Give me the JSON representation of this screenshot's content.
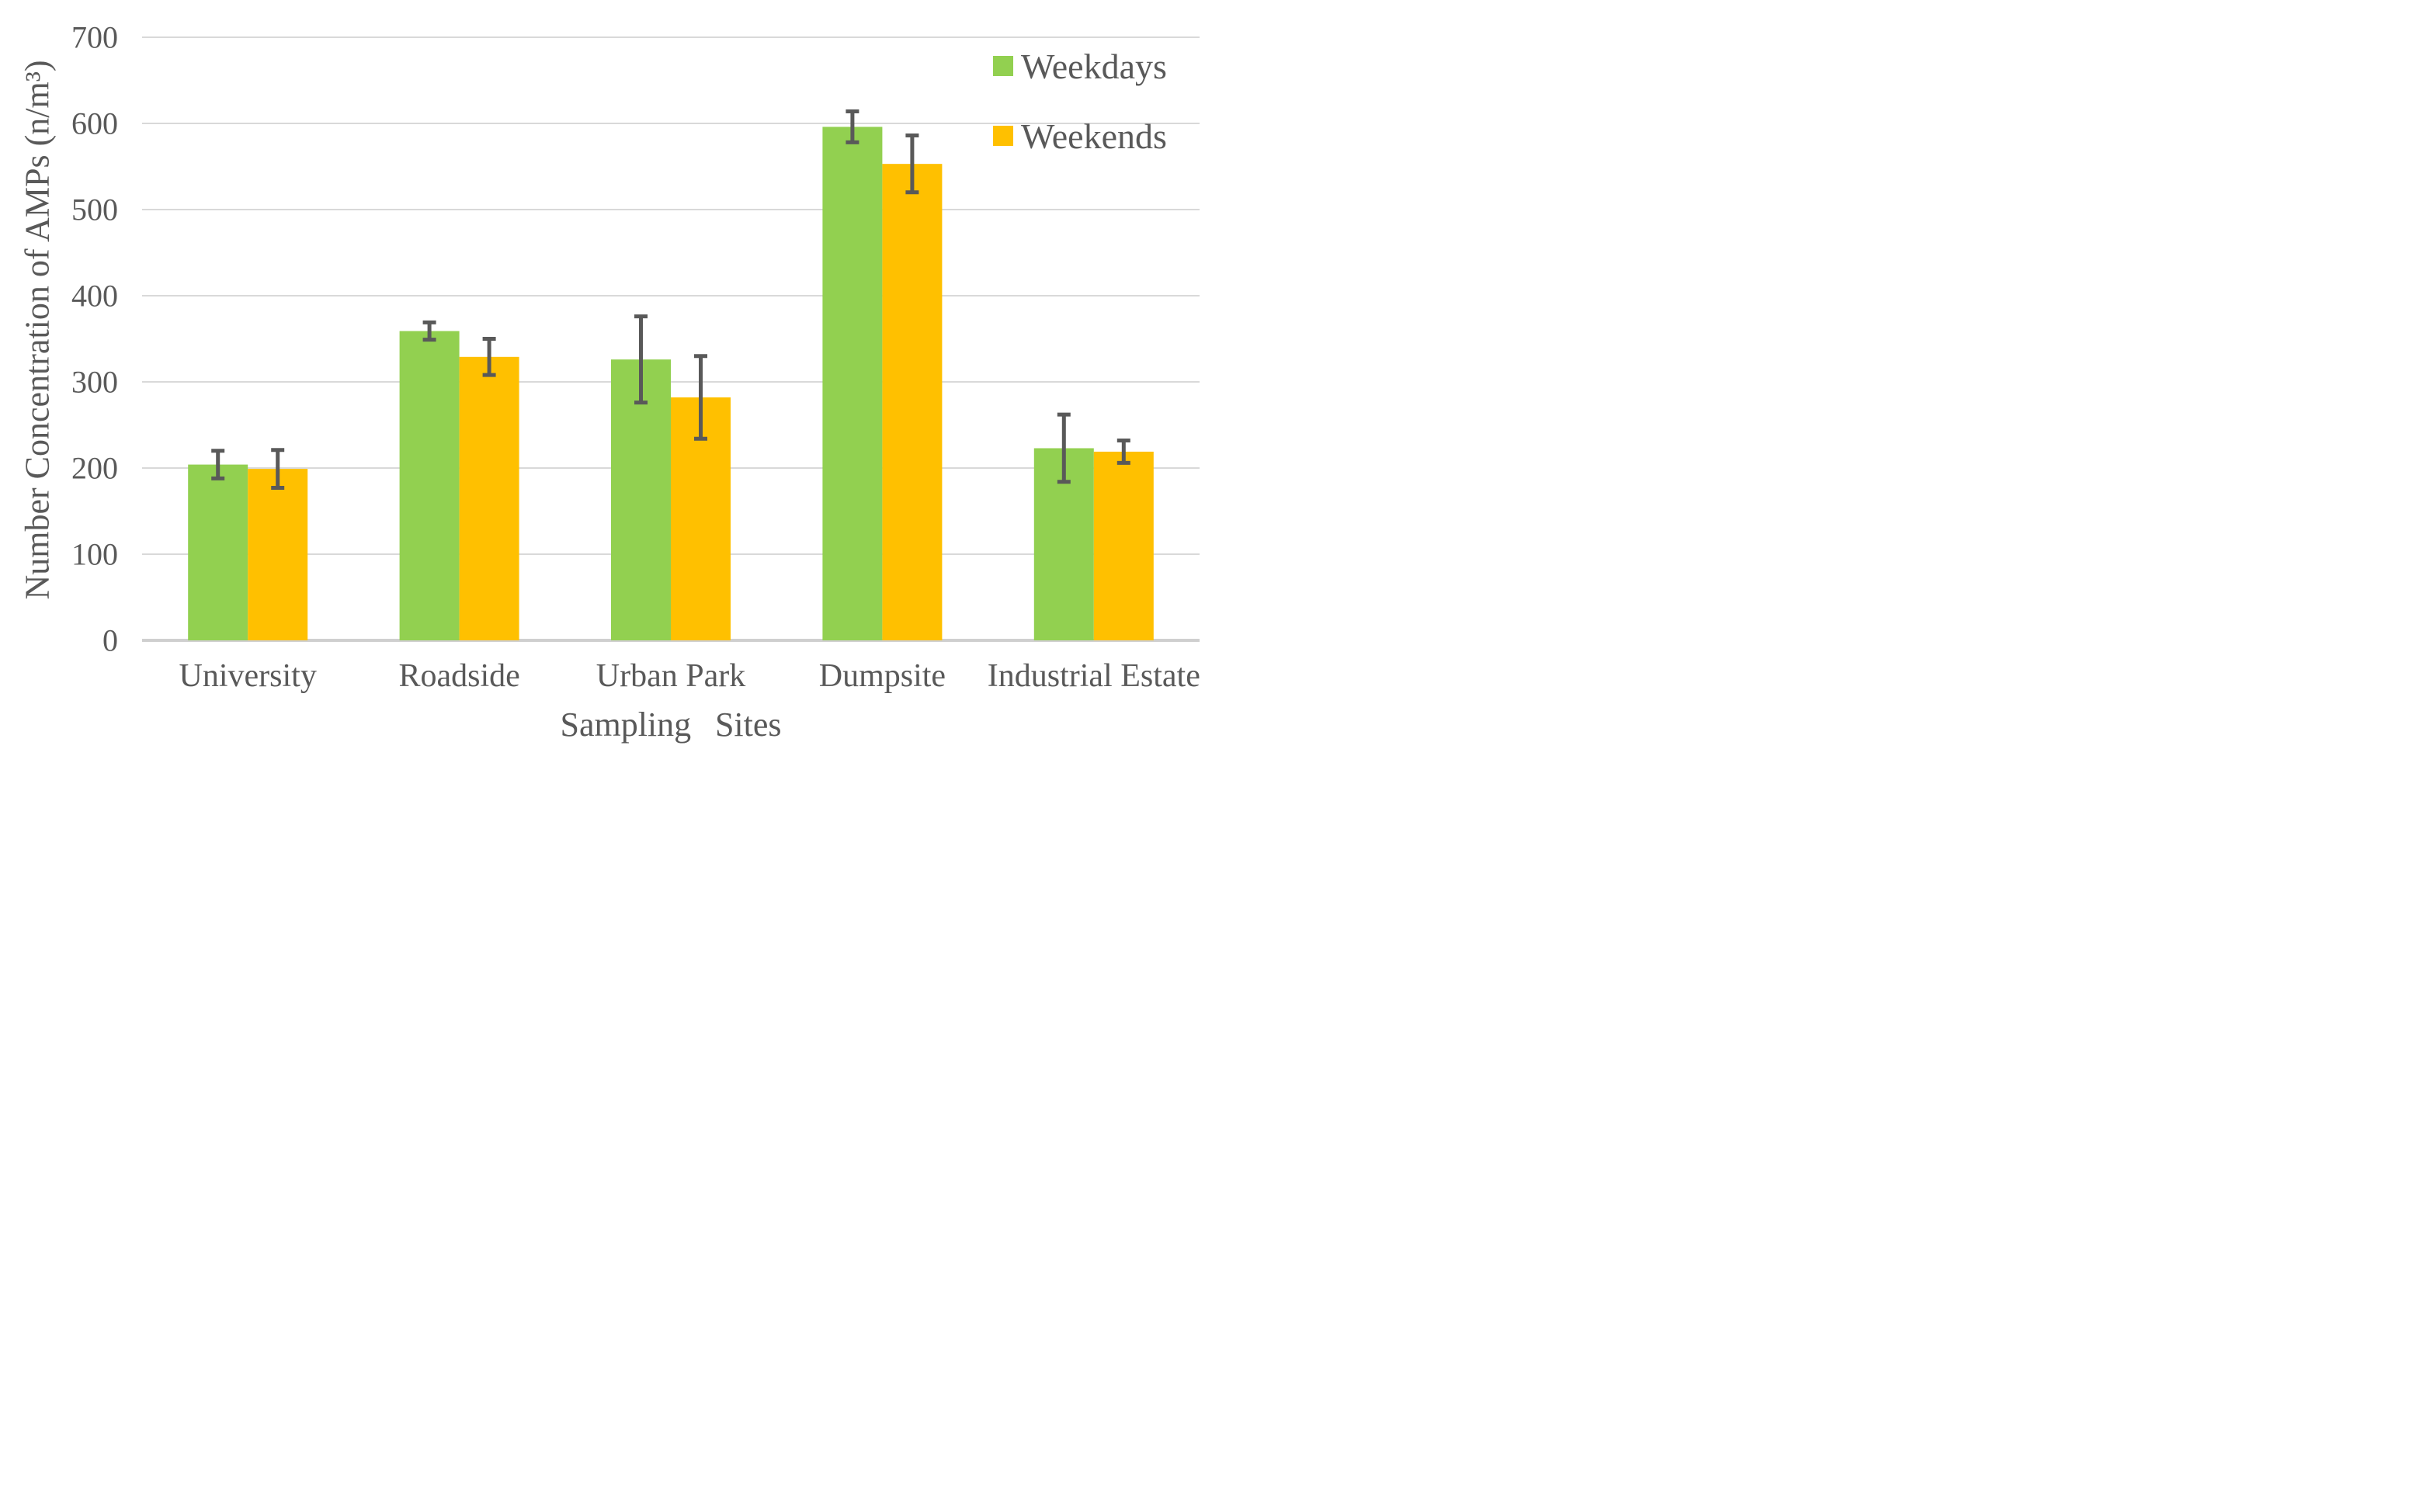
{
  "chart_data": {
    "type": "bar",
    "title": "",
    "xlabel": "Sampling Sites",
    "ylabel": "Number Concentration of AMPs (n/m³)",
    "categories": [
      "University",
      "Roadside",
      "Urban Park",
      "Dumpsite",
      "Industrial Estate"
    ],
    "series": [
      {
        "name": "Weekdays",
        "color": "#92D050",
        "values": [
          204,
          359,
          326,
          596,
          223
        ],
        "errors": [
          16,
          10,
          50,
          18,
          39
        ]
      },
      {
        "name": "Weekends",
        "color": "#FFC000",
        "values": [
          199,
          329,
          282,
          553,
          219
        ],
        "errors": [
          22,
          21,
          48,
          33,
          13
        ]
      }
    ],
    "y_ticks": [
      0,
      100,
      200,
      300,
      400,
      500,
      600,
      700
    ],
    "ylim": [
      0,
      700
    ],
    "grid": true,
    "legend_position": "top-right",
    "error_bar_color": "#595959",
    "gridline_color": "#D9D9D9",
    "baseline_color": "#CFCFCF",
    "text_color": "#595959"
  }
}
